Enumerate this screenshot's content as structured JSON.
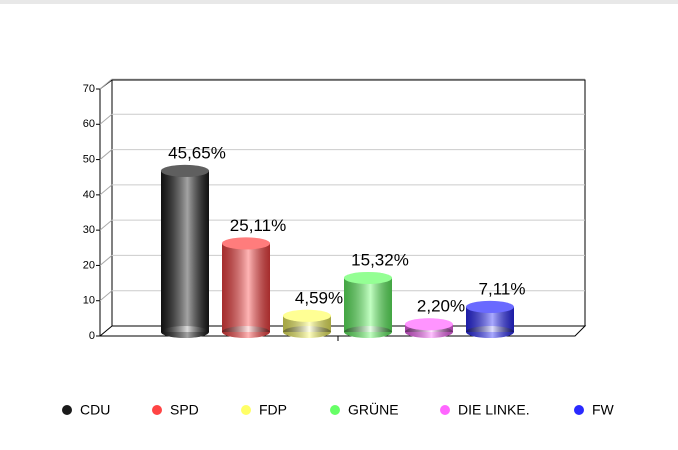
{
  "chart_data": {
    "type": "bar",
    "categories": [
      "CDU",
      "SPD",
      "FDP",
      "GRÜNE",
      "DIE LINKE.",
      "FW"
    ],
    "series": [
      {
        "values": [
          45.65,
          25.11,
          4.59,
          15.32,
          2.2,
          7.11
        ],
        "value_labels": [
          "45,65%",
          "25,11%",
          "4,59%",
          "15,32%",
          "2,20%",
          "7,11%"
        ],
        "colors": [
          "#1a1a1a",
          "#ff4444",
          "#ffff66",
          "#66ff66",
          "#ff66ff",
          "#2a2aff"
        ]
      }
    ],
    "ylim": [
      0,
      70
    ],
    "yticks": [
      0,
      10,
      20,
      30,
      40,
      50,
      60,
      70
    ],
    "grid": true,
    "legend": "bottom"
  }
}
